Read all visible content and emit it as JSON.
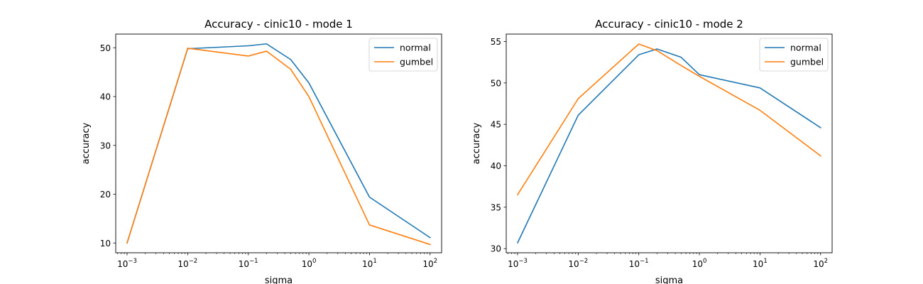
{
  "chart_data": [
    {
      "type": "line",
      "title": "Accuracy - cinic10 - mode 1",
      "xlabel": "sigma",
      "ylabel": "accuracy",
      "xscale": "log",
      "xlim": [
        0.00065,
        155
      ],
      "ylim": [
        8.0,
        52.8
      ],
      "xticks": [
        0.001,
        0.01,
        0.1,
        1,
        10,
        100
      ],
      "xtick_labels": [
        {
          "base": "10",
          "exp": "−3"
        },
        {
          "base": "10",
          "exp": "−2"
        },
        {
          "base": "10",
          "exp": "−1"
        },
        {
          "base": "10",
          "exp": "0"
        },
        {
          "base": "10",
          "exp": "1"
        },
        {
          "base": "10",
          "exp": "2"
        }
      ],
      "yticks": [
        10,
        20,
        30,
        40,
        50
      ],
      "ytick_labels": [
        "10",
        "20",
        "30",
        "40",
        "50"
      ],
      "legend_loc": "upper-right",
      "grid": false,
      "x": [
        0.001,
        0.01,
        0.1,
        0.2,
        0.5,
        1,
        10,
        100
      ],
      "series": [
        {
          "name": "normal",
          "color": "#1f77b4",
          "values": [
            10.0,
            49.8,
            50.4,
            50.8,
            47.6,
            42.8,
            19.4,
            11.1
          ]
        },
        {
          "name": "gumbel",
          "color": "#ff7f0e",
          "values": [
            10.0,
            49.9,
            48.3,
            49.3,
            45.6,
            40.0,
            13.7,
            9.7
          ]
        }
      ]
    },
    {
      "type": "line",
      "title": "Accuracy - cinic10 - mode 2",
      "xlabel": "sigma",
      "ylabel": "accuracy",
      "xscale": "log",
      "xlim": [
        0.00065,
        155
      ],
      "ylim": [
        29.5,
        55.9
      ],
      "xticks": [
        0.001,
        0.01,
        0.1,
        1,
        10,
        100
      ],
      "xtick_labels": [
        {
          "base": "10",
          "exp": "−3"
        },
        {
          "base": "10",
          "exp": "−2"
        },
        {
          "base": "10",
          "exp": "−1"
        },
        {
          "base": "10",
          "exp": "0"
        },
        {
          "base": "10",
          "exp": "1"
        },
        {
          "base": "10",
          "exp": "2"
        }
      ],
      "yticks": [
        30,
        35,
        40,
        45,
        50,
        55
      ],
      "ytick_labels": [
        "30",
        "35",
        "40",
        "45",
        "50",
        "55"
      ],
      "legend_loc": "upper-right",
      "grid": false,
      "x": [
        0.001,
        0.01,
        0.1,
        0.2,
        0.5,
        1,
        10,
        100
      ],
      "series": [
        {
          "name": "normal",
          "color": "#1f77b4",
          "values": [
            30.7,
            46.1,
            53.4,
            54.1,
            53.1,
            51.0,
            49.4,
            44.6
          ]
        },
        {
          "name": "gumbel",
          "color": "#ff7f0e",
          "values": [
            36.5,
            48.1,
            54.7,
            53.9,
            52.1,
            50.8,
            46.7,
            41.2
          ]
        }
      ]
    }
  ]
}
